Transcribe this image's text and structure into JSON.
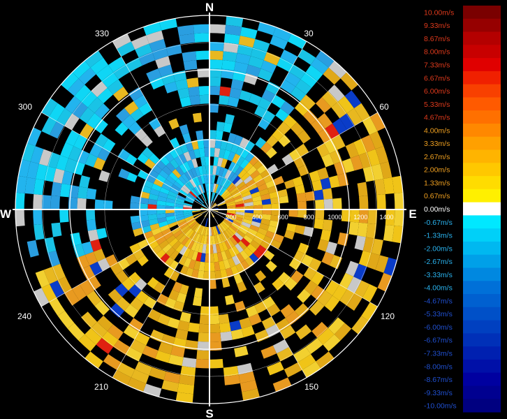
{
  "chart_data": {
    "type": "polar-velocity-display",
    "compass": {
      "north": "N",
      "east": "E",
      "south": "S",
      "west": "W"
    },
    "azimuth_labels": [
      "30",
      "60",
      "120",
      "150",
      "210",
      "240",
      "300",
      "330"
    ],
    "range_labels": [
      "200",
      "400",
      "600",
      "800",
      "1000",
      "1200",
      "1400"
    ],
    "colorbar": {
      "labels": [
        "10.00m/s",
        "9.33m/s",
        "8.67m/s",
        "8.00m/s",
        "7.33m/s",
        "6.67m/s",
        "6.00m/s",
        "5.33m/s",
        "4.67m/s",
        "4.00m/s",
        "3.33m/s",
        "2.67m/s",
        "2.00m/s",
        "1.33m/s",
        "0.67m/s",
        "0.00m/s",
        "-0.67m/s",
        "-1.33m/s",
        "-2.00m/s",
        "-2.67m/s",
        "-3.33m/s",
        "-4.00m/s",
        "-4.67m/s",
        "-5.33m/s",
        "-6.00m/s",
        "-6.67m/s",
        "-7.33m/s",
        "-8.00m/s",
        "-8.67m/s",
        "-9.33m/s",
        "-10.00m/s"
      ],
      "colors": [
        "#7a0000",
        "#960000",
        "#b40000",
        "#c80000",
        "#e00000",
        "#f02000",
        "#f84000",
        "#ff5a00",
        "#ff7000",
        "#ff8800",
        "#ffa000",
        "#ffb400",
        "#ffc800",
        "#ffdc00",
        "#fff000",
        "#ffffff",
        "#00e8ff",
        "#00d0f8",
        "#00b8f0",
        "#00a0e8",
        "#0088e0",
        "#0070d8",
        "#0060d0",
        "#0050c8",
        "#0040c0",
        "#0030b8",
        "#0020b0",
        "#0010a8",
        "#0000a0",
        "#000090",
        "#000080"
      ]
    },
    "colors": {
      "background": "#000000",
      "grid": "#ffffff",
      "approaching": "#19c3e6",
      "receding": "#e8b820",
      "near_zero": "#c8c8c8"
    }
  }
}
